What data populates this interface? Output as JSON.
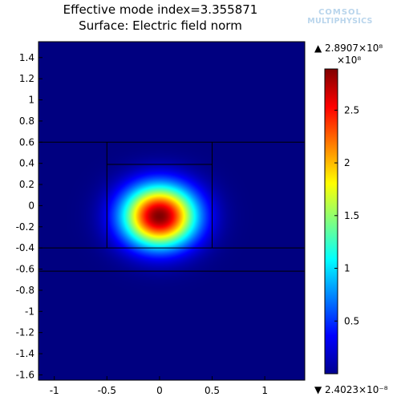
{
  "header": {
    "title": "Effective mode index=3.355871",
    "subtitle": "Surface: Electric field norm",
    "logo_line1": "COMSOL",
    "logo_line2": "MULTIPHYSICS"
  },
  "colors": {
    "background_field": "#00008f",
    "core_peak": "#7f0000",
    "boundary_lines": "#000000"
  },
  "chart_data": {
    "type": "heatmap",
    "title": "Effective mode index=3.355871",
    "subtitle": "Surface: Electric field norm",
    "xlabel": "",
    "ylabel": "",
    "xlim": [
      -1.15,
      1.38
    ],
    "ylim": [
      -1.65,
      1.55
    ],
    "x_ticks": [
      -1,
      -0.5,
      0,
      0.5,
      1
    ],
    "x_tick_labels": [
      "-1",
      "-0.5",
      "0",
      "0.5",
      "1"
    ],
    "y_ticks": [
      1.4,
      1.2,
      1,
      0.8,
      0.6,
      0.4,
      0.2,
      0,
      -0.2,
      -0.4,
      -0.6,
      -0.8,
      -1,
      -1.2,
      -1.4,
      -1.6
    ],
    "y_tick_labels": [
      "1.4",
      "1.2",
      "1",
      "0.8",
      "0.6",
      "0.4",
      "0.2",
      "0",
      "-0.2",
      "-0.4",
      "-0.6",
      "-0.8",
      "-1",
      "-1.2",
      "-1.4",
      "-1.6"
    ],
    "field": {
      "peak_value": 289070000.0,
      "peak_x": 0.0,
      "peak_y": -0.1,
      "sigma_x": 0.24,
      "sigma_y": 0.2
    },
    "geometry_lines": {
      "horizontal_full_width_y": [
        0.6,
        -0.4,
        -0.62
      ],
      "core_rectangle": {
        "x": [
          -0.5,
          0.5
        ],
        "y": [
          -0.4,
          0.6
        ]
      },
      "inner_horizontal": {
        "x": [
          -0.5,
          0.5
        ],
        "y": 0.39
      }
    },
    "colorbar": {
      "max_label": "▲ 2.8907×10⁸",
      "exponent_label": "×10⁸",
      "min_label": "▼ 2.4023×10⁻⁸",
      "range": [
        0,
        2.8907
      ],
      "ticks": [
        2.5,
        2,
        1.5,
        1,
        0.5
      ],
      "tick_labels": [
        "2.5",
        "2",
        "1.5",
        "1",
        "0.5"
      ],
      "colormap": "jet"
    },
    "grid": false,
    "legend": "right"
  }
}
